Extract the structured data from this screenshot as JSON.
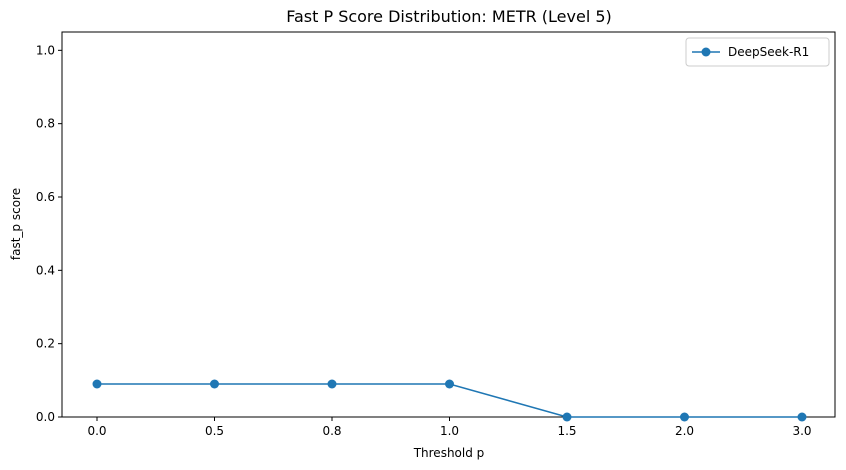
{
  "chart_data": {
    "type": "line",
    "title": "Fast P Score Distribution: METR (Level 5)",
    "xlabel": "Threshold p",
    "ylabel": "fast_p score",
    "categories": [
      "0.0",
      "0.5",
      "0.8",
      "1.0",
      "1.5",
      "2.0",
      "3.0"
    ],
    "yticks": [
      "0.0",
      "0.2",
      "0.4",
      "0.6",
      "0.8",
      "1.0"
    ],
    "ylim": [
      0,
      1.05
    ],
    "grid": false,
    "legend_position": "top-right",
    "series": [
      {
        "name": "DeepSeek-R1",
        "color": "#1f77b4",
        "marker": "circle",
        "values": [
          0.09,
          0.09,
          0.09,
          0.09,
          0.0,
          0.0,
          0.0
        ]
      }
    ]
  }
}
